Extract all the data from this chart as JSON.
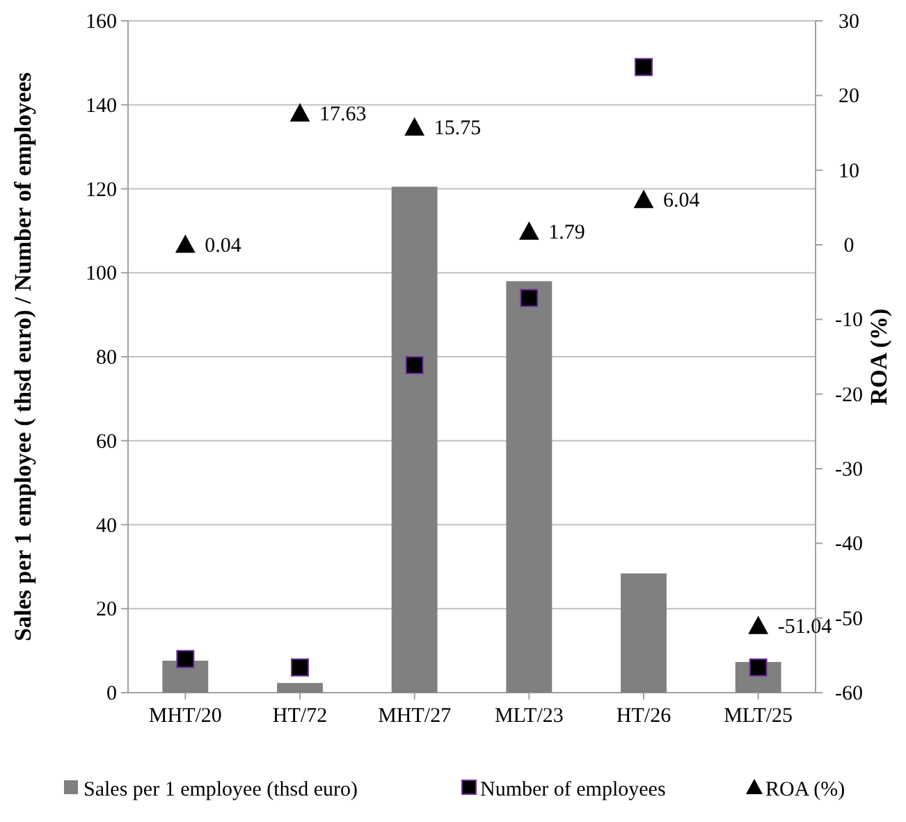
{
  "chart_data": {
    "type": "bar",
    "ylabel": "Sales per 1 employee ( thsd euro) / Number of employees",
    "y2label": "ROA (%)",
    "categories": [
      "MHT/20",
      "HT/72",
      "MHT/27",
      "MLT/23",
      "HT/26",
      "MLT/25"
    ],
    "series": [
      {
        "name": "Sales per 1 employee (thsd euro)",
        "color": "#808080",
        "values": [
          7.6,
          2.3,
          120.5,
          98,
          28.4,
          7.3
        ]
      },
      {
        "name": "Number of employees",
        "type": "scatter",
        "marker": "square",
        "color": "#000000",
        "values": [
          8,
          6,
          78,
          94,
          149,
          6
        ]
      },
      {
        "name": "ROA (%)",
        "type": "scatter",
        "marker": "triangle",
        "axis": "y2",
        "color": "#000000",
        "values": [
          0.04,
          17.63,
          15.75,
          1.79,
          6.04,
          -51.04
        ],
        "value_labels": [
          "0.04",
          "17.63",
          "15.75",
          "1.79",
          "6.04",
          "-51.04"
        ]
      }
    ],
    "ylim": [
      0,
      160
    ],
    "yticks": [
      0,
      20,
      40,
      60,
      80,
      100,
      120,
      140,
      160
    ],
    "y2lim": [
      -60,
      30
    ],
    "y2ticks": [
      -60,
      -50,
      -40,
      -30,
      -20,
      -10,
      0,
      10,
      20,
      30
    ],
    "grid": "y",
    "legend": "bottom"
  }
}
